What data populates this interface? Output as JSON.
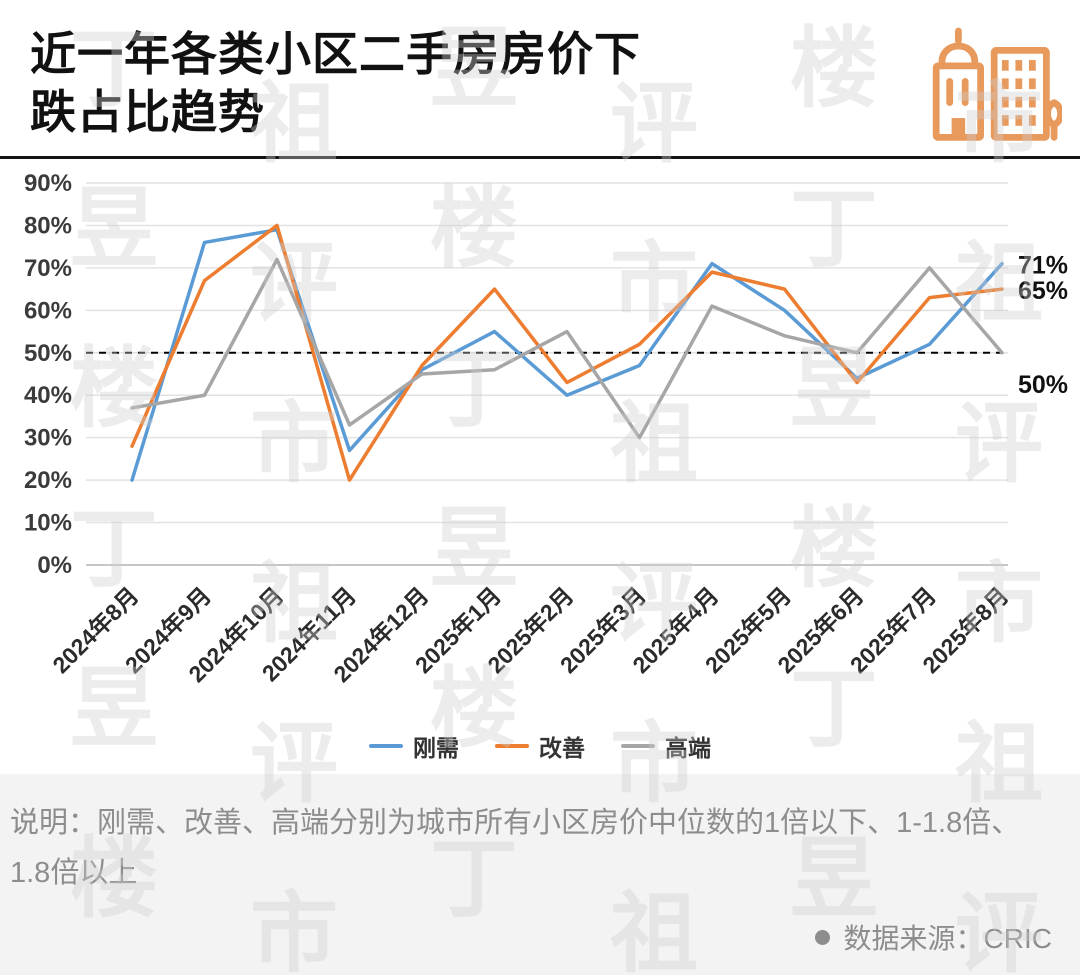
{
  "title": {
    "line1": "近一年各类小区二手房房价下",
    "line2": "跌占比趋势"
  },
  "icons": {
    "logo": "city-buildings-icon",
    "source_bullet": "dot-icon"
  },
  "watermark": {
    "text": "丁祖昱评楼市"
  },
  "chart_data": {
    "type": "line",
    "title": "近一年各类小区二手房房价下跌占比趋势",
    "categories": [
      "2024年8月",
      "2024年9月",
      "2024年10月",
      "2024年11月",
      "2024年12月",
      "2025年1月",
      "2025年2月",
      "2025年3月",
      "2025年4月",
      "2025年5月",
      "2025年6月",
      "2025年7月",
      "2025年8月"
    ],
    "series": [
      {
        "name": "刚需",
        "color": "#5B9BD5",
        "values": [
          20,
          76,
          79,
          27,
          46,
          55,
          40,
          47,
          71,
          60,
          44,
          52,
          71
        ]
      },
      {
        "name": "改善",
        "color": "#ED7D31",
        "values": [
          28,
          67,
          80,
          20,
          47,
          65,
          43,
          52,
          69,
          65,
          43,
          63,
          65
        ]
      },
      {
        "name": "高端",
        "color": "#A6A6A6",
        "values": [
          37,
          40,
          72,
          33,
          45,
          46,
          55,
          30,
          61,
          54,
          50,
          70,
          50
        ]
      }
    ],
    "ylim": [
      0,
      90
    ],
    "ytick_step": 10,
    "yticks": [
      "0%",
      "10%",
      "20%",
      "30%",
      "40%",
      "50%",
      "60%",
      "70%",
      "80%",
      "90%"
    ],
    "reference_line": {
      "value": 50,
      "style": "dashed",
      "color": "#000000"
    },
    "end_labels": [
      "71%",
      "65%",
      "50%"
    ],
    "grid": true,
    "legend_position": "bottom"
  },
  "footer": {
    "note": "说明：刚需、改善、高端分别为城市所有小区房价中位数的1倍以下、1-1.8倍、1.8倍以上",
    "source_label": "数据来源：CRIC"
  }
}
